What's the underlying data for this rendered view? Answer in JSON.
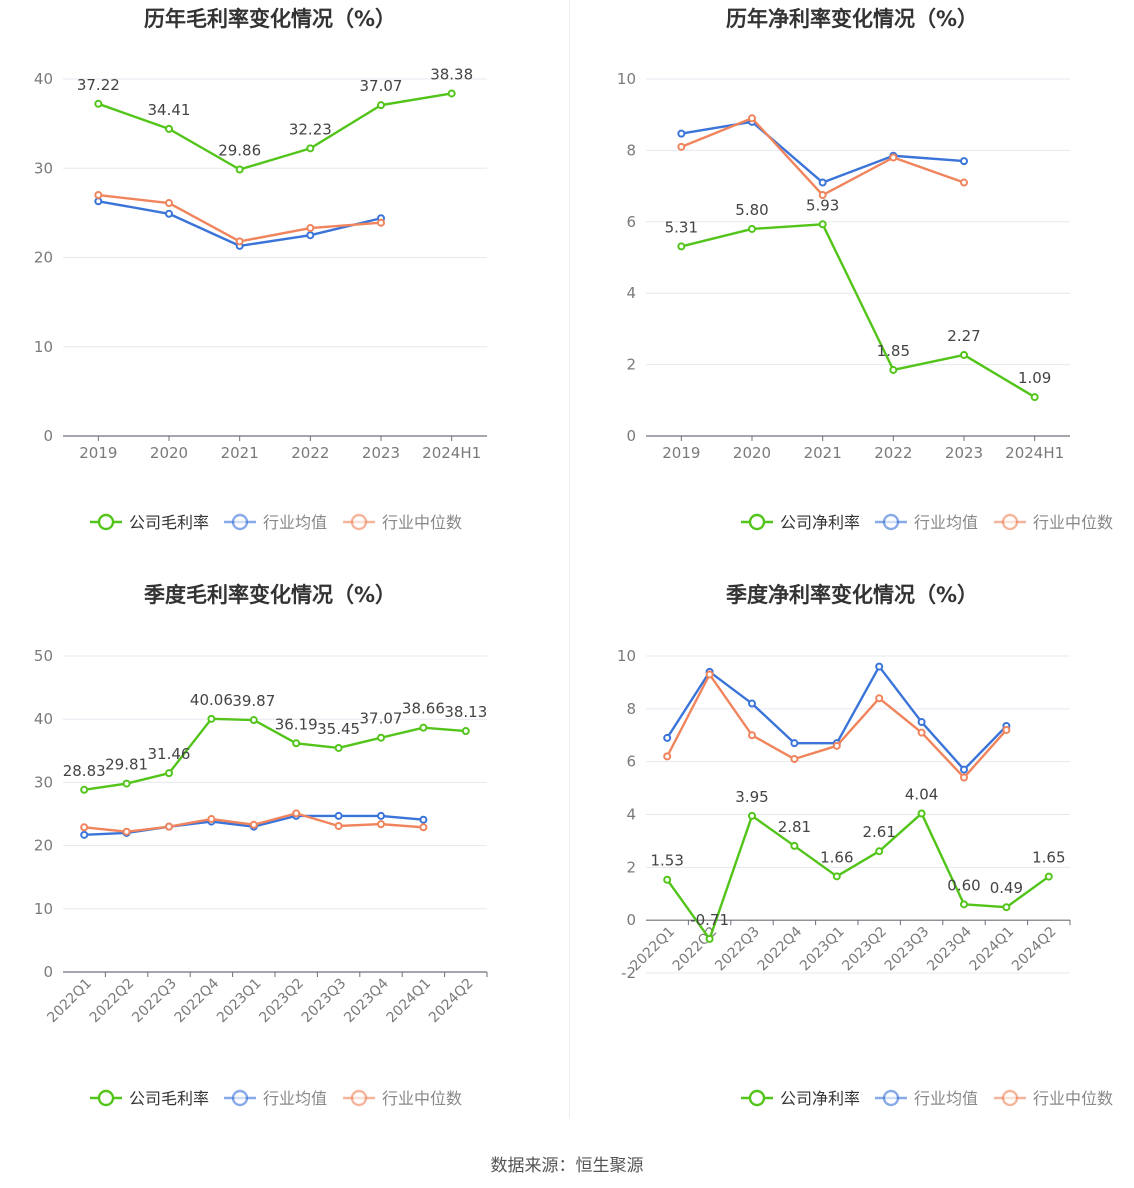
{
  "colors": {
    "company": "#52c41a",
    "industry_avg": "#3a74d8",
    "industry_median": "#f0845c",
    "grid": "#e6e8f0",
    "axis": "#6e7079",
    "tick_text": "#7a7a7a",
    "title": "#333333",
    "label": "#444444"
  },
  "footer": {
    "source": "数据来源：恒生聚源"
  },
  "chart_data": [
    {
      "type": "line",
      "title": "历年毛利率变化情况（%）",
      "categories": [
        "2019",
        "2020",
        "2021",
        "2022",
        "2023",
        "2024H1"
      ],
      "ylim": [
        0,
        40
      ],
      "yticks": [
        0,
        10,
        20,
        30,
        40
      ],
      "grid": true,
      "legend": "bottom-center",
      "series": [
        {
          "name": "公司毛利率",
          "role": "company",
          "values": [
            37.22,
            34.41,
            29.86,
            32.23,
            37.07,
            38.38
          ],
          "labels": [
            "37.22",
            "34.41",
            "29.86",
            "32.23",
            "37.07",
            "38.38"
          ]
        },
        {
          "name": "行业均值",
          "role": "industry_avg",
          "values": [
            26.3,
            24.9,
            21.3,
            22.5,
            24.4,
            null
          ]
        },
        {
          "name": "行业中位数",
          "role": "industry_median",
          "values": [
            27.0,
            26.1,
            21.8,
            23.3,
            23.9,
            null
          ]
        }
      ]
    },
    {
      "type": "line",
      "title": "历年净利率变化情况（%）",
      "categories": [
        "2019",
        "2020",
        "2021",
        "2022",
        "2023",
        "2024H1"
      ],
      "ylim": [
        0,
        10
      ],
      "yticks": [
        0,
        2,
        4,
        6,
        8,
        10
      ],
      "grid": true,
      "legend": "bottom-center",
      "series": [
        {
          "name": "公司净利率",
          "role": "company",
          "values": [
            5.31,
            5.8,
            5.93,
            1.85,
            2.27,
            1.09
          ],
          "labels": [
            "5.31",
            "5.80",
            "5.93",
            "1.85",
            "2.27",
            "1.09"
          ]
        },
        {
          "name": "行业均值",
          "role": "industry_avg",
          "values": [
            8.47,
            8.8,
            7.1,
            7.85,
            7.7,
            null
          ]
        },
        {
          "name": "行业中位数",
          "role": "industry_median",
          "values": [
            8.1,
            8.9,
            6.75,
            7.8,
            7.1,
            null
          ]
        }
      ]
    },
    {
      "type": "line",
      "title": "季度毛利率变化情况（%）",
      "categories": [
        "2022Q1",
        "2022Q2",
        "2022Q3",
        "2022Q4",
        "2023Q1",
        "2023Q2",
        "2023Q3",
        "2023Q4",
        "2024Q1",
        "2024Q2"
      ],
      "ylim": [
        0,
        50
      ],
      "yticks": [
        0,
        10,
        20,
        30,
        40,
        50
      ],
      "grid": true,
      "legend": "bottom-center",
      "series": [
        {
          "name": "公司毛利率",
          "role": "company",
          "values": [
            28.83,
            29.81,
            31.46,
            40.06,
            39.87,
            36.19,
            35.45,
            37.07,
            38.66,
            38.13
          ],
          "labels": [
            "28.83",
            "29.81",
            "31.46",
            "40.06",
            "39.87",
            "36.19",
            "35.45",
            "37.07",
            "38.66",
            "38.13"
          ]
        },
        {
          "name": "行业均值",
          "role": "industry_avg",
          "values": [
            21.7,
            22.0,
            23.0,
            23.8,
            23.0,
            24.7,
            24.7,
            24.7,
            24.1,
            null
          ]
        },
        {
          "name": "行业中位数",
          "role": "industry_median",
          "values": [
            22.9,
            22.2,
            23.0,
            24.2,
            23.3,
            25.1,
            23.1,
            23.4,
            22.9,
            null
          ]
        }
      ]
    },
    {
      "type": "line",
      "title": "季度净利率变化情况（%）",
      "categories": [
        "2022Q1",
        "2022Q2",
        "2022Q3",
        "2022Q4",
        "2023Q1",
        "2023Q2",
        "2023Q3",
        "2023Q4",
        "2024Q1",
        "2024Q2"
      ],
      "ylim": [
        -2,
        10
      ],
      "yticks": [
        -2,
        0,
        2,
        4,
        6,
        8,
        10
      ],
      "grid": true,
      "legend": "bottom-center",
      "series": [
        {
          "name": "公司净利率",
          "role": "company",
          "values": [
            1.53,
            -0.71,
            3.95,
            2.81,
            1.66,
            2.61,
            4.04,
            0.6,
            0.49,
            1.65
          ],
          "labels": [
            "1.53",
            "-0.71",
            "3.95",
            "2.81",
            "1.66",
            "2.61",
            "4.04",
            "0.60",
            "0.49",
            "1.65"
          ]
        },
        {
          "name": "行业均值",
          "role": "industry_avg",
          "values": [
            6.9,
            9.4,
            8.2,
            6.7,
            6.7,
            9.6,
            7.5,
            5.7,
            7.35,
            null
          ]
        },
        {
          "name": "行业中位数",
          "role": "industry_median",
          "values": [
            6.2,
            9.3,
            7.0,
            6.1,
            6.6,
            8.4,
            7.1,
            5.4,
            7.2,
            null
          ]
        }
      ]
    }
  ]
}
